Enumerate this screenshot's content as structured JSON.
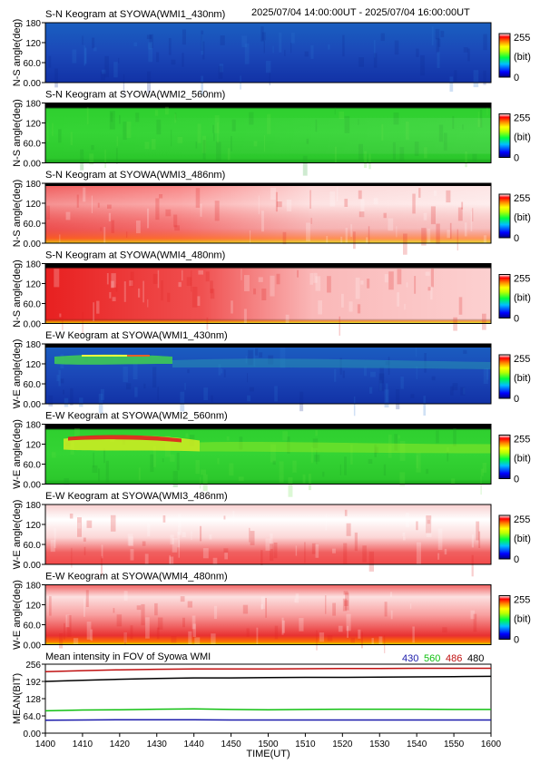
{
  "header": {
    "time_range": "2025/07/04 14:00:00UT - 2025/07/04 16:00:00UT"
  },
  "colorbar": {
    "max_label": "255",
    "unit_label": "(bit)",
    "min_label": "0"
  },
  "keograms": [
    {
      "title": "S-N Keogram at SYOWA(WMI1_430nm)",
      "ylabel": "N-S angle(deg)",
      "ticks": [
        "180",
        "120",
        "60.0",
        "0.00"
      ],
      "theme": "blue"
    },
    {
      "title": "S-N Keogram at SYOWA(WMI2_560nm)",
      "ylabel": "N-S angle(deg)",
      "ticks": [
        "180",
        "120",
        "60.0",
        "0.00"
      ],
      "theme": "green"
    },
    {
      "title": "S-N Keogram at SYOWA(WMI3_486nm)",
      "ylabel": "N-S angle(deg)",
      "ticks": [
        "180",
        "120",
        "60.0",
        "0.00"
      ],
      "theme": "light"
    },
    {
      "title": "S-N Keogram at SYOWA(WMI4_480nm)",
      "ylabel": "N-S angle(deg)",
      "ticks": [
        "180",
        "120",
        "60.0",
        "0.00"
      ],
      "theme": "red"
    },
    {
      "title": "E-W Keogram at SYOWA(WMI1_430nm)",
      "ylabel": "W-E angle(deg)",
      "ticks": [
        "180",
        "120",
        "60.0",
        "0.00"
      ],
      "theme": "blue_arc"
    },
    {
      "title": "E-W Keogram at SYOWA(WMI2_560nm)",
      "ylabel": "W-E angle(deg)",
      "ticks": [
        "180",
        "120",
        "60.0",
        "0.00"
      ],
      "theme": "green_arc"
    },
    {
      "title": "E-W Keogram at SYOWA(WMI3_486nm)",
      "ylabel": "W-E angle(deg)",
      "ticks": [
        "180",
        "120",
        "60.0",
        "0.00"
      ],
      "theme": "light"
    },
    {
      "title": "E-W Keogram at SYOWA(WMI4_480nm)",
      "ylabel": "W-E angle(deg)",
      "ticks": [
        "180",
        "120",
        "60.0",
        "0.00"
      ],
      "theme": "red"
    }
  ],
  "chart_data": {
    "type": "line",
    "title": "Mean intensity in FOV of Syowa WMI",
    "xlabel": "TIME(UT)",
    "ylabel": "MEAN(BIT)",
    "x_ticks": [
      "1400",
      "1410",
      "1420",
      "1430",
      "1440",
      "1450",
      "1500",
      "1510",
      "1520",
      "1530",
      "1540",
      "1550",
      "1600"
    ],
    "y_ticks": [
      "256",
      "192",
      "128",
      "64.0",
      "0.00"
    ],
    "ylim": [
      0,
      256
    ],
    "x": [
      0,
      10,
      20,
      30,
      40,
      50,
      60,
      70,
      80,
      90,
      100,
      110,
      120
    ],
    "series": [
      {
        "name": "430",
        "color": "#1a1aaa",
        "values": [
          48,
          49,
          50,
          50,
          50,
          49,
          49,
          49,
          49,
          49,
          49,
          49,
          49
        ]
      },
      {
        "name": "560",
        "color": "#10c010",
        "values": [
          83,
          86,
          87,
          89,
          90,
          88,
          87,
          88,
          89,
          89,
          89,
          88,
          88
        ]
      },
      {
        "name": "486",
        "color": "#c01010",
        "values": [
          228,
          232,
          235,
          237,
          238,
          238,
          238,
          239,
          240,
          240,
          241,
          241,
          241
        ]
      },
      {
        "name": "480",
        "color": "#000000",
        "values": [
          192,
          196,
          200,
          203,
          205,
          205,
          206,
          207,
          207,
          208,
          209,
          210,
          211
        ]
      }
    ]
  }
}
